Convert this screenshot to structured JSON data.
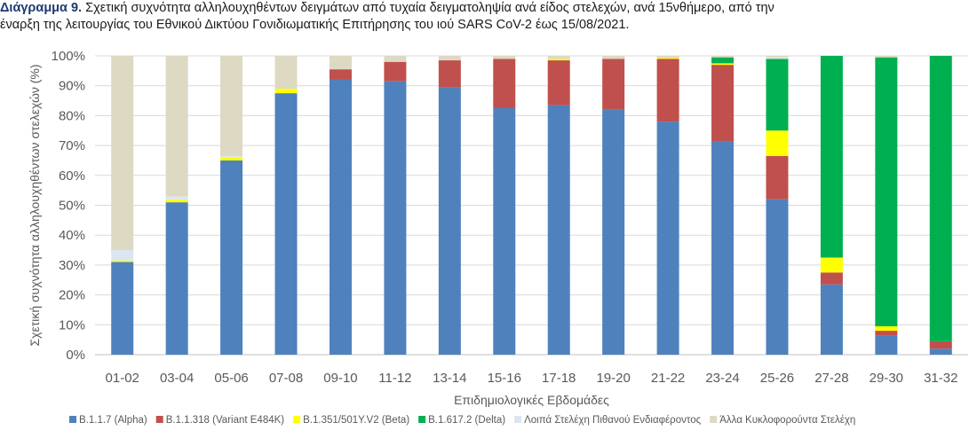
{
  "title": {
    "label": "Διάγραμμα 9.",
    "line1": "Σχετική συχνότητα αλληλουχηθέντων δειγμάτων από τυχαία δειγματοληψία ανά είδος στελεχών, ανά 15νθήμερο, από την",
    "line2": "έναρξη της λειτουργίας του Εθνικού Δικτύου Γονιδιωματικής Επιτήρησης του ιού SARS CoV-2 έως 15/08/2021."
  },
  "chart_data": {
    "type": "bar",
    "stacked": true,
    "xlabel": "Επιδημιολογικές Εβδομάδες",
    "ylabel": "Σχετική συχνότητα αλληλουχηθέντων στελεχών (%)",
    "ylim": [
      0,
      100
    ],
    "yticks": [
      "0%",
      "10%",
      "20%",
      "30%",
      "40%",
      "50%",
      "60%",
      "70%",
      "80%",
      "90%",
      "100%"
    ],
    "legend_position": "bottom",
    "categories": [
      "01-02",
      "03-04",
      "05-06",
      "07-08",
      "09-10",
      "11-12",
      "13-14",
      "15-16",
      "17-18",
      "19-20",
      "21-22",
      "23-24",
      "25-26",
      "27-28",
      "29-30",
      "31-32"
    ],
    "series": [
      {
        "name": "B.1.1.7 (Alpha)",
        "color": "#4f81bd",
        "values": [
          31,
          51,
          65,
          87.5,
          92,
          91.5,
          89.5,
          82.5,
          83.5,
          82,
          78,
          71.5,
          52,
          23.5,
          6.5,
          2
        ]
      },
      {
        "name": "B.1.1.318 (Variant E484K)",
        "color": "#c0504d",
        "values": [
          0,
          0,
          0,
          0,
          3.5,
          6.5,
          9,
          16.5,
          15,
          17,
          21,
          25.5,
          14.5,
          4,
          1.5,
          2.5
        ]
      },
      {
        "name": "B.1.351/501Y.V2 (Beta)",
        "color": "#ffff00",
        "values": [
          0.5,
          1,
          1,
          1.5,
          0,
          0,
          0,
          0,
          0.5,
          0,
          0.3,
          0.5,
          8.5,
          5,
          1.5,
          0
        ]
      },
      {
        "name": "B.1.617.2 (Delta)",
        "color": "#00b050",
        "values": [
          0,
          0,
          0,
          0,
          0,
          0,
          0,
          0,
          0,
          0,
          0,
          2,
          24,
          67.5,
          90,
          95.5
        ]
      },
      {
        "name": "Λοιπά Στελέχη Πιθανού Ενδιαφέροντος",
        "color": "#dce6f2",
        "values": [
          3.5,
          1,
          0.5,
          0,
          0,
          0,
          0,
          0,
          0,
          0,
          0,
          0,
          0.5,
          0,
          0,
          0
        ]
      },
      {
        "name": "Άλλα Κυκλοφορούντα Στελέχη",
        "color": "#ddd9c3",
        "values": [
          65,
          47,
          33.5,
          11,
          4.5,
          2,
          1.5,
          1,
          1,
          1,
          0.7,
          0.5,
          0.5,
          0,
          0.5,
          0
        ]
      }
    ]
  }
}
